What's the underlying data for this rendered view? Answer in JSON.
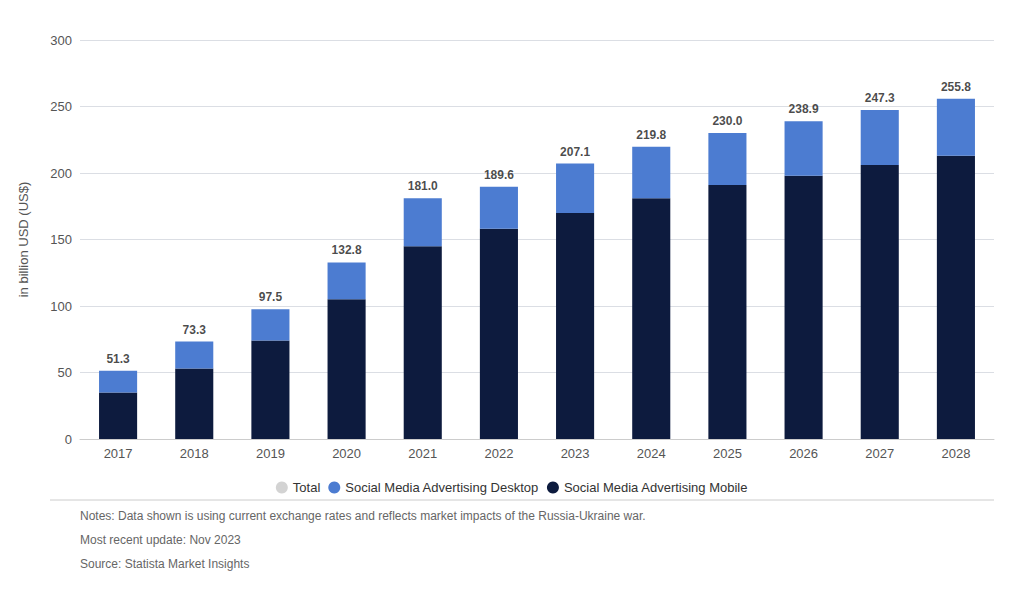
{
  "chart_data": {
    "type": "bar",
    "stacked": true,
    "ylabel": "in billion USD (US$)",
    "categories": [
      "2017",
      "2018",
      "2019",
      "2020",
      "2021",
      "2022",
      "2023",
      "2024",
      "2025",
      "2026",
      "2027",
      "2028"
    ],
    "series": [
      {
        "name": "Total",
        "type": "scatter",
        "color": "#c8c8c8",
        "data_labels": true,
        "values": [
          51.3,
          73.3,
          97.5,
          132.8,
          181.0,
          189.6,
          207.1,
          219.8,
          230.0,
          238.9,
          247.3,
          255.8
        ],
        "value_labels": [
          "51.3",
          "73.3",
          "97.5",
          "132.8",
          "181.0",
          "189.6",
          "207.1",
          "219.8",
          "230.0",
          "238.9",
          "247.3",
          "255.8"
        ]
      },
      {
        "name": "Social Media Advertising Desktop",
        "type": "bar",
        "color": "#4C7CD1",
        "values": [
          16.3,
          20.3,
          23.5,
          27.8,
          36.0,
          31.6,
          37.1,
          38.8,
          39.0,
          40.9,
          41.3,
          42.8
        ]
      },
      {
        "name": "Social Media Advertising Mobile",
        "type": "bar",
        "color": "#0d1b3e",
        "values": [
          35.0,
          53.0,
          74.0,
          105.0,
          145.0,
          158.0,
          170.0,
          181.0,
          191.0,
          198.0,
          206.0,
          213.0
        ]
      }
    ],
    "ylim": [
      0,
      300
    ],
    "yticks": [
      0,
      50,
      100,
      150,
      200,
      250,
      300
    ],
    "grid": true,
    "legend": "bottom",
    "annotations": [
      "Notes: Data shown is using current exchange rates and reflects market impacts of the Russia-Ukraine war.",
      "Most recent update: Nov 2023",
      "Source: Statista Market Insights"
    ]
  }
}
